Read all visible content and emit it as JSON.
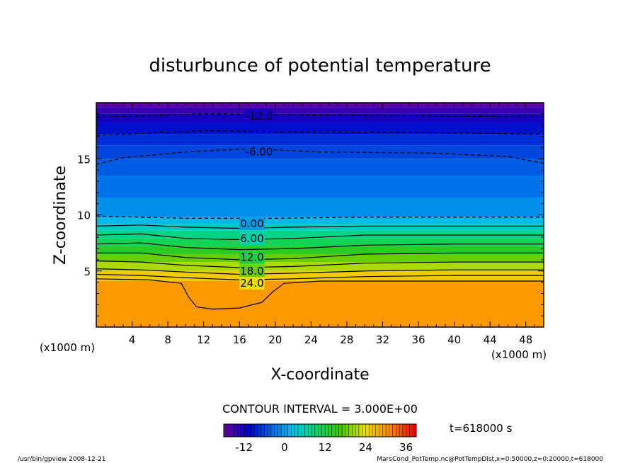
{
  "chart_data": {
    "type": "heatmap",
    "title": "disturbunce of potential temperature",
    "xlabel": "X-coordinate",
    "ylabel": "Z-coordinate",
    "x_unit_label": "(x1000 m)",
    "z_unit_label": "(x1000 m)",
    "xlim": [
      0,
      50
    ],
    "ylim": [
      0,
      20
    ],
    "x_ticks": [
      4,
      8,
      12,
      16,
      20,
      24,
      28,
      32,
      36,
      40,
      44,
      48
    ],
    "y_ticks": [
      5,
      10,
      15
    ],
    "contour_interval_text": "CONTOUR INTERVAL = 3.000E+00",
    "contour_labels": [
      "-12.0",
      "-6.00",
      "0.00",
      "6.00",
      "12.0",
      "18.0",
      "24.0"
    ],
    "colorbar_ticks": [
      -12,
      0,
      12,
      24,
      36
    ],
    "colorbar_range": [
      -18,
      39
    ],
    "time_text": "t=618000 s",
    "footer_left": "/usr/bin/gpview   2008-12-21",
    "footer_right": "MarsCond_PotTemp.nc@PotTempDist,x=0:50000,z=0:20000,t=618000",
    "bands": [
      {
        "z": 0.0,
        "value": 30
      },
      {
        "z": 4.1,
        "value": 25.5
      },
      {
        "z": 5.0,
        "value": 21
      },
      {
        "z": 5.8,
        "value": 18
      },
      {
        "z": 6.5,
        "value": 14
      },
      {
        "z": 7.2,
        "value": 11
      },
      {
        "z": 7.9,
        "value": 8
      },
      {
        "z": 8.6,
        "value": 5
      },
      {
        "z": 9.2,
        "value": 2
      },
      {
        "z": 9.8,
        "value": -1
      },
      {
        "z": 11.5,
        "value": -3
      },
      {
        "z": 13.5,
        "value": -4.5
      },
      {
        "z": 15.0,
        "value": -6
      },
      {
        "z": 16.2,
        "value": -7.5
      },
      {
        "z": 17.2,
        "value": -9.5
      },
      {
        "z": 18.2,
        "value": -12
      },
      {
        "z": 19.0,
        "value": -14.5
      },
      {
        "z": 19.6,
        "value": -17
      }
    ],
    "contours": [
      {
        "level": -12,
        "dashed": true,
        "points": [
          [
            0,
            18.7
          ],
          [
            12,
            19.0
          ],
          [
            25,
            18.9
          ],
          [
            40,
            18.8
          ],
          [
            50,
            18.7
          ]
        ]
      },
      {
        "level": -9,
        "dashed": true,
        "points": [
          [
            0,
            17.1
          ],
          [
            12,
            17.5
          ],
          [
            25,
            17.4
          ],
          [
            40,
            17.3
          ],
          [
            50,
            17.2
          ]
        ]
      },
      {
        "level": -6,
        "dashed": true,
        "points": [
          [
            0,
            14.5
          ],
          [
            3,
            15.1
          ],
          [
            10,
            15.6
          ],
          [
            17,
            15.9
          ],
          [
            25,
            15.6
          ],
          [
            38,
            15.5
          ],
          [
            46,
            15.2
          ],
          [
            50,
            14.6
          ]
        ]
      },
      {
        "level": 0,
        "dashed": true,
        "points": [
          [
            0,
            9.9
          ],
          [
            10,
            9.7
          ],
          [
            20,
            9.7
          ],
          [
            30,
            9.8
          ],
          [
            50,
            9.8
          ]
        ]
      },
      {
        "level": 3,
        "dashed": false,
        "points": [
          [
            0,
            9.0
          ],
          [
            5,
            9.1
          ],
          [
            10,
            8.9
          ],
          [
            16,
            8.8
          ],
          [
            22,
            8.9
          ],
          [
            30,
            9.0
          ],
          [
            40,
            9.0
          ],
          [
            50,
            9.0
          ]
        ]
      },
      {
        "level": 6,
        "dashed": false,
        "points": [
          [
            0,
            8.2
          ],
          [
            5,
            8.3
          ],
          [
            10,
            7.9
          ],
          [
            16,
            7.8
          ],
          [
            22,
            7.9
          ],
          [
            30,
            8.2
          ],
          [
            40,
            8.2
          ],
          [
            50,
            8.2
          ]
        ]
      },
      {
        "level": 9,
        "dashed": false,
        "points": [
          [
            0,
            7.4
          ],
          [
            5,
            7.5
          ],
          [
            10,
            7.1
          ],
          [
            16,
            6.9
          ],
          [
            22,
            7.0
          ],
          [
            30,
            7.3
          ],
          [
            40,
            7.4
          ],
          [
            50,
            7.4
          ]
        ]
      },
      {
        "level": 12,
        "dashed": false,
        "points": [
          [
            0,
            6.6
          ],
          [
            5,
            6.6
          ],
          [
            10,
            6.2
          ],
          [
            16,
            6.0
          ],
          [
            22,
            6.1
          ],
          [
            30,
            6.5
          ],
          [
            40,
            6.6
          ],
          [
            50,
            6.6
          ]
        ]
      },
      {
        "level": 15,
        "dashed": false,
        "points": [
          [
            0,
            5.9
          ],
          [
            5,
            5.8
          ],
          [
            10,
            5.5
          ],
          [
            16,
            5.3
          ],
          [
            22,
            5.4
          ],
          [
            30,
            5.7
          ],
          [
            40,
            5.8
          ],
          [
            50,
            5.8
          ]
        ]
      },
      {
        "level": 18,
        "dashed": false,
        "points": [
          [
            0,
            5.2
          ],
          [
            5,
            5.1
          ],
          [
            10,
            4.9
          ],
          [
            16,
            4.7
          ],
          [
            22,
            4.8
          ],
          [
            30,
            5.0
          ],
          [
            40,
            5.1
          ],
          [
            50,
            5.1
          ]
        ]
      },
      {
        "level": 21,
        "dashed": false,
        "points": [
          [
            0,
            4.7
          ],
          [
            5,
            4.6
          ],
          [
            10,
            4.4
          ],
          [
            16,
            4.2
          ],
          [
            22,
            4.3
          ],
          [
            30,
            4.5
          ],
          [
            40,
            4.6
          ],
          [
            50,
            4.6
          ]
        ]
      },
      {
        "level": 24,
        "dashed": false,
        "points": [
          [
            0,
            4.3
          ],
          [
            6,
            4.2
          ],
          [
            9.5,
            3.9
          ],
          [
            10.3,
            2.7
          ],
          [
            11.2,
            1.8
          ],
          [
            13,
            1.6
          ],
          [
            16,
            1.7
          ],
          [
            18.5,
            2.2
          ],
          [
            19.8,
            3.2
          ],
          [
            21,
            3.9
          ],
          [
            25,
            4.1
          ],
          [
            35,
            4.1
          ],
          [
            50,
            4.1
          ]
        ]
      }
    ]
  }
}
